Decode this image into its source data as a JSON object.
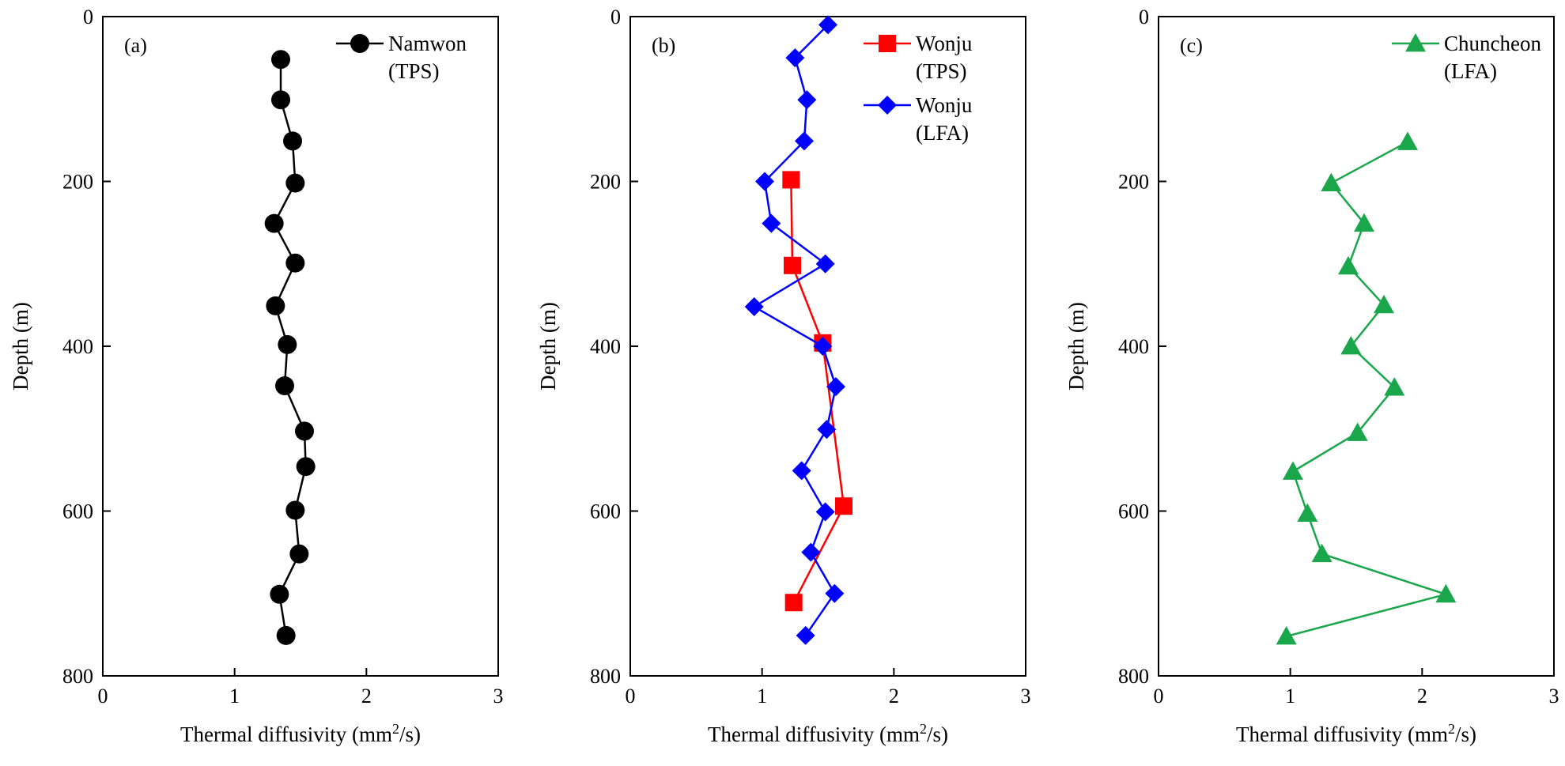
{
  "chart_data": [
    {
      "type": "line",
      "panel_label": "(a)",
      "xlabel_prefix": "Thermal diffusivity (mm",
      "xlabel_sup": "2",
      "xlabel_suffix": "/s)",
      "ylabel": "Depth (m)",
      "xlim": [
        0,
        3
      ],
      "ylim": [
        0,
        800
      ],
      "y_inverted": true,
      "xticks": [
        "0",
        "1",
        "2",
        "3"
      ],
      "yticks": [
        "0",
        "200",
        "400",
        "600",
        "800"
      ],
      "legend_position": "top-right",
      "series": [
        {
          "name": "Namwon",
          "name_line2": "(TPS)",
          "color": "#000000",
          "marker": "circle",
          "x": [
            1.35,
            1.35,
            1.44,
            1.46,
            1.3,
            1.46,
            1.31,
            1.4,
            1.38,
            1.53,
            1.54,
            1.46,
            1.49,
            1.34,
            1.39
          ],
          "y": [
            52,
            101,
            151,
            202,
            251,
            299,
            351,
            398,
            448,
            503,
            546,
            599,
            652,
            701,
            751
          ]
        }
      ]
    },
    {
      "type": "line",
      "panel_label": "(b)",
      "xlabel_prefix": "Thermal diffusivity (mm",
      "xlabel_sup": "2",
      "xlabel_suffix": "/s)",
      "ylabel": "Depth (m)",
      "xlim": [
        0,
        3
      ],
      "ylim": [
        0,
        800
      ],
      "y_inverted": true,
      "xticks": [
        "0",
        "1",
        "2",
        "3"
      ],
      "yticks": [
        "0",
        "200",
        "400",
        "600",
        "800"
      ],
      "legend_position": "top-right",
      "series": [
        {
          "name": "Wonju",
          "name_line2": "(TPS)",
          "color": "#ff0000",
          "marker": "square",
          "x": [
            1.22,
            1.23,
            1.46,
            1.62,
            1.24
          ],
          "y": [
            198,
            302,
            396,
            594,
            711
          ]
        },
        {
          "name": "Wonju",
          "name_line2": "(LFA)",
          "color": "#0000ff",
          "marker": "diamond",
          "x": [
            1.5,
            1.25,
            1.34,
            1.32,
            1.02,
            1.07,
            1.48,
            0.94,
            1.46,
            1.56,
            1.49,
            1.3,
            1.48,
            1.37,
            1.55,
            1.33
          ],
          "y": [
            10,
            50,
            101,
            151,
            200,
            251,
            300,
            352,
            400,
            449,
            501,
            551,
            601,
            650,
            700,
            751
          ]
        }
      ]
    },
    {
      "type": "line",
      "panel_label": "(c)",
      "xlabel_prefix": "Thermal diffusivity (mm",
      "xlabel_sup": "2",
      "xlabel_suffix": "/s)",
      "ylabel": "Depth (m)",
      "xlim": [
        0,
        3
      ],
      "ylim": [
        0,
        800
      ],
      "y_inverted": true,
      "xticks": [
        "0",
        "1",
        "2",
        "3"
      ],
      "yticks": [
        "0",
        "200",
        "400",
        "600",
        "800"
      ],
      "legend_position": "top-right",
      "series": [
        {
          "name": "Chuncheon",
          "name_line2": "(LFA)",
          "color": "#1aa64b",
          "marker": "triangle",
          "x": [
            1.89,
            1.31,
            1.56,
            1.44,
            1.71,
            1.46,
            1.79,
            1.51,
            1.02,
            1.13,
            1.24,
            2.18,
            0.97
          ],
          "y": [
            152,
            202,
            251,
            303,
            350,
            400,
            450,
            505,
            552,
            603,
            652,
            701,
            752
          ]
        }
      ]
    }
  ]
}
